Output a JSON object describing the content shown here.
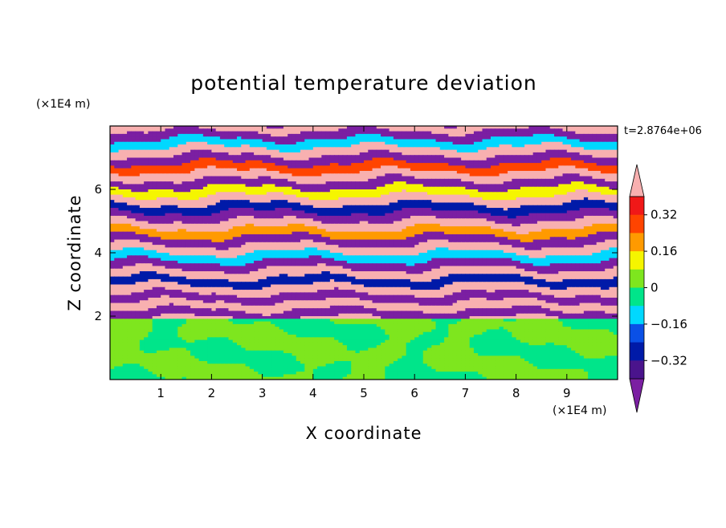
{
  "chart_data": {
    "type": "heatmap",
    "title": "potential temperature deviation",
    "xlabel": "X coordinate",
    "ylabel": "Z coordinate",
    "x_unit": "(×1E4 m)",
    "y_unit": "(×1E4 m)",
    "time_label": "t=2.8764e+06",
    "xlim": [
      0,
      10
    ],
    "ylim": [
      0,
      8
    ],
    "xticks": [
      1,
      2,
      3,
      4,
      5,
      6,
      7,
      8,
      9
    ],
    "yticks": [
      2,
      4,
      6
    ],
    "colorbar": {
      "levels": [
        -0.48,
        -0.4,
        -0.32,
        -0.24,
        -0.16,
        -0.08,
        0,
        0.08,
        0.16,
        0.24,
        0.32,
        0.4,
        0.48
      ],
      "colors": [
        "#7b1fa2",
        "#4a148c",
        "#001aa8",
        "#0a50e6",
        "#00d8ff",
        "#00e58a",
        "#7ee61e",
        "#f5f500",
        "#ff9a00",
        "#ff4400",
        "#f01818",
        "#f8b0b0"
      ],
      "under_color": "#7b1fa2",
      "over_color": "#f8b0b0",
      "tick_labels": [
        "0.32",
        "0.16",
        "0",
        "-0.16",
        "-0.32"
      ]
    },
    "regions": [
      {
        "z_range": [
          0,
          1.95
        ],
        "description_colors": [
          "#00e58a",
          "#7ee61e"
        ]
      },
      {
        "z_range": [
          1.95,
          8
        ],
        "description_colors": [
          "#7b1fa2",
          "#f8b0b0",
          "#001aa8",
          "#00d8ff",
          "#f5f500",
          "#ff4400"
        ]
      }
    ]
  }
}
